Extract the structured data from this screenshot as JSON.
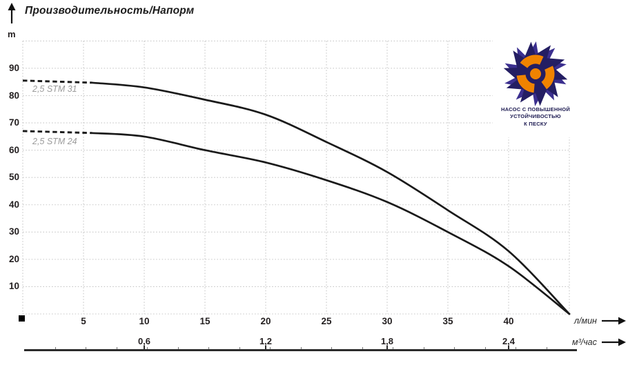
{
  "chart_data": {
    "type": "line",
    "title": "Производительность/Напорм",
    "y_axis": {
      "unit": "m",
      "ticks": [
        10,
        20,
        30,
        40,
        50,
        60,
        70,
        80,
        90
      ],
      "range": [
        0,
        100
      ],
      "grid_step": 10
    },
    "x_axis_primary": {
      "unit": "л/мин",
      "ticks": [
        5,
        10,
        15,
        20,
        25,
        30,
        35,
        40
      ],
      "range": [
        0,
        45
      ],
      "grid_step": 5
    },
    "x_axis_secondary": {
      "unit": "м³/час",
      "ticks": [
        {
          "label": "0,6",
          "at_l_min": 10
        },
        {
          "label": "1,2",
          "at_l_min": 20
        },
        {
          "label": "1,8",
          "at_l_min": 30
        },
        {
          "label": "2,4",
          "at_l_min": 40
        }
      ]
    },
    "grid": true,
    "series": [
      {
        "name": "2,5 STM 31",
        "dashed_until_l_min": 5.7,
        "points_l_min_vs_m": [
          [
            0,
            85.5
          ],
          [
            5,
            85
          ],
          [
            10,
            83
          ],
          [
            15,
            78.5
          ],
          [
            20,
            73
          ],
          [
            25,
            63
          ],
          [
            30,
            52
          ],
          [
            35,
            38
          ],
          [
            40,
            23
          ],
          [
            45,
            0
          ]
        ]
      },
      {
        "name": "2,5 STM 24",
        "dashed_until_l_min": 5.7,
        "points_l_min_vs_m": [
          [
            0,
            67
          ],
          [
            5,
            66.5
          ],
          [
            10,
            65
          ],
          [
            15,
            60
          ],
          [
            20,
            55.5
          ],
          [
            25,
            49
          ],
          [
            30,
            41
          ],
          [
            35,
            30
          ],
          [
            40,
            17.5
          ],
          [
            45,
            0
          ]
        ]
      }
    ]
  },
  "badge": {
    "lines": [
      "НАСОС С ПОВЫШЕННОЙ",
      "УСТОЙЧИВОСТЬЮ",
      "К ПЕСКУ"
    ]
  },
  "colors": {
    "curve": "#1a1a1a",
    "grid": "#c8c8c8",
    "axis_text": "#231f20",
    "series_label": "#9a9a9a",
    "axis_line": "#2b2b2b",
    "logo_navy": "#241e63",
    "logo_navy_light": "#3b2f8f",
    "logo_orange": "#f08300"
  }
}
